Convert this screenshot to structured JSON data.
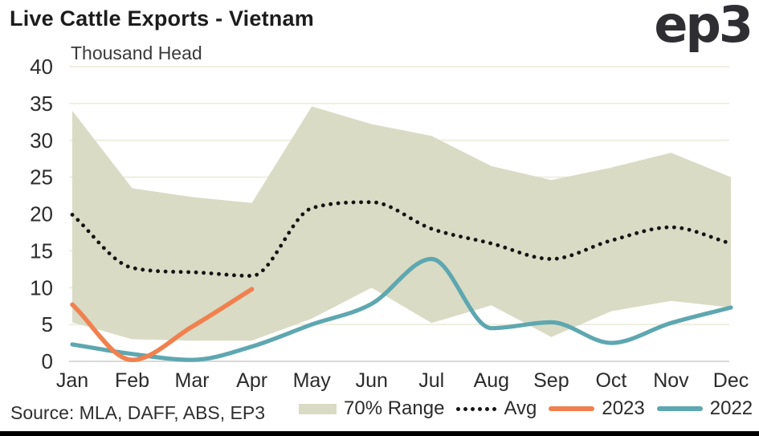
{
  "header": {
    "title": "Live Cattle Exports - Vietnam",
    "logo_text": "ep3"
  },
  "source": {
    "text": "Source: MLA, DAFF, ABS, EP3"
  },
  "chart_data": {
    "type": "line",
    "title": "Live Cattle Exports - Vietnam",
    "unit_label": "Thousand Head",
    "xlabel": "",
    "ylabel": "Thousand Head",
    "categories": [
      "Jan",
      "Feb",
      "Mar",
      "Apr",
      "May",
      "Jun",
      "Jul",
      "Aug",
      "Sep",
      "Oct",
      "Nov",
      "Dec"
    ],
    "ylim": [
      0,
      40
    ],
    "y_ticks": [
      0,
      5,
      10,
      15,
      20,
      25,
      30,
      35,
      40
    ],
    "grid": true,
    "legend_position": "bottom",
    "band": {
      "name": "70% Range",
      "color": "#d9dbc5",
      "upper": [
        34,
        23.5,
        22.3,
        21.5,
        34.6,
        32.2,
        30.6,
        26.5,
        24.6,
        26.3,
        28.3,
        25
      ],
      "lower": [
        5.3,
        3,
        2.8,
        2.8,
        5.8,
        10,
        5.2,
        7.6,
        3.3,
        6.8,
        8.2,
        7.3
      ]
    },
    "series": [
      {
        "name": "Avg",
        "style": "dotted",
        "color": "#141414",
        "values": [
          19.9,
          12.7,
          12.1,
          11.6,
          20.8,
          21.6,
          18,
          16,
          13.9,
          16.4,
          18.2,
          16
        ]
      },
      {
        "name": "2023",
        "style": "solid",
        "color": "#f0814f",
        "values": [
          7.7,
          0.2,
          4.7,
          9.8
        ]
      },
      {
        "name": "2022",
        "style": "solid",
        "color": "#5ea7b0",
        "values": [
          2.3,
          1,
          0.2,
          2,
          5,
          7.8,
          13.9,
          4.5,
          5.3,
          2.5,
          5.2,
          7.3
        ]
      }
    ],
    "style": {
      "grid_color": "#efeee2",
      "axis_color": "#d8d8d8",
      "tick_label_color": "#2b2b2b"
    }
  }
}
